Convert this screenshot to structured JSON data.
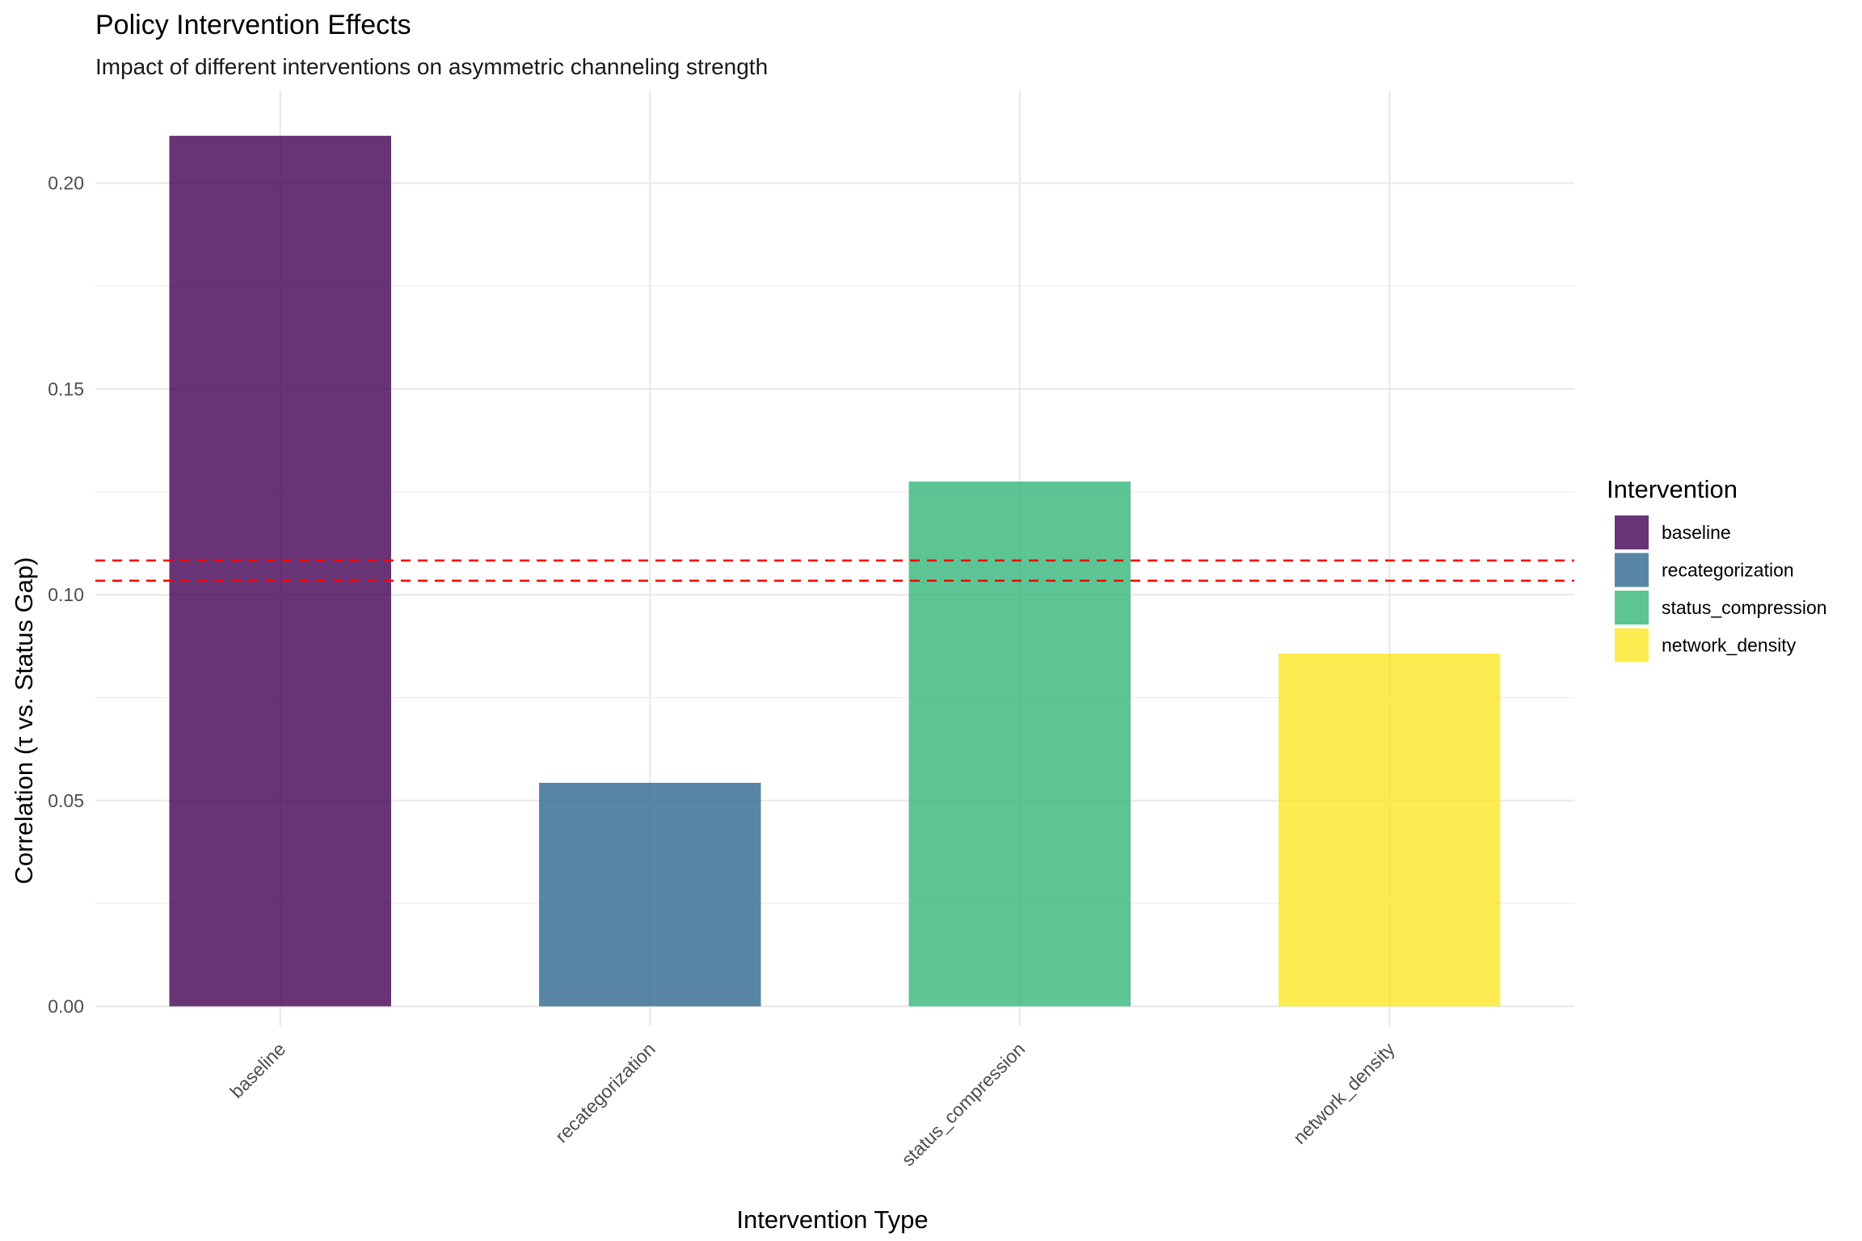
{
  "chart_data": {
    "type": "bar",
    "title": "Policy Intervention Effects",
    "subtitle": "Impact of different interventions on asymmetric channeling strength",
    "xlabel": "Intervention Type",
    "ylabel": "Correlation (τ vs. Status Gap)",
    "categories": [
      "baseline",
      "recategorization",
      "status_compression",
      "network_density"
    ],
    "values": [
      0.2115,
      0.0543,
      0.1275,
      0.0857
    ],
    "colors": [
      "#440154",
      "#31688E",
      "#35B779",
      "#FDE725"
    ],
    "ylim": [
      -0.0048,
      0.2225
    ],
    "yticks": [
      "0.00",
      "0.05",
      "0.10",
      "0.15",
      "0.20"
    ],
    "ytick_values": [
      0,
      0.05,
      0.1,
      0.15,
      0.2
    ],
    "reference_lines": [
      0.1083,
      0.1034
    ],
    "reference_line_color": "#FF0000",
    "grid": true,
    "legend": {
      "title": "Intervention",
      "placement": "right",
      "items": [
        "baseline",
        "recategorization",
        "status_compression",
        "network_density"
      ]
    }
  }
}
